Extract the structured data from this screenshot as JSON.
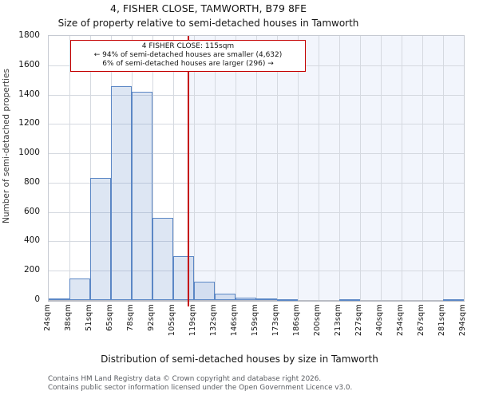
{
  "chart_data": {
    "type": "bar",
    "title": "4, FISHER CLOSE, TAMWORTH, B79 8FE",
    "subtitle": "Size of property relative to semi-detached houses in Tamworth",
    "xlabel": "Distribution of semi-detached houses by size in Tamworth",
    "ylabel": "Number of semi-detached properties",
    "bin_edges_sqm": [
      24,
      38,
      51,
      65,
      78,
      92,
      105,
      119,
      132,
      146,
      159,
      173,
      186,
      200,
      213,
      227,
      240,
      254,
      267,
      281,
      294
    ],
    "xtick_labels": [
      "24sqm",
      "38sqm",
      "51sqm",
      "65sqm",
      "78sqm",
      "92sqm",
      "105sqm",
      "119sqm",
      "132sqm",
      "146sqm",
      "159sqm",
      "173sqm",
      "186sqm",
      "200sqm",
      "213sqm",
      "227sqm",
      "240sqm",
      "254sqm",
      "267sqm",
      "281sqm",
      "294sqm"
    ],
    "values": [
      10,
      145,
      830,
      1455,
      1420,
      560,
      300,
      125,
      45,
      15,
      10,
      5,
      0,
      0,
      8,
      0,
      0,
      0,
      0,
      8
    ],
    "yticks": [
      0,
      200,
      400,
      600,
      800,
      1000,
      1200,
      1400,
      1600,
      1800
    ],
    "ylim": [
      0,
      1800
    ],
    "grid": true,
    "legend": "none",
    "marker": {
      "value_sqm": 115,
      "smaller_pct": 94,
      "smaller_count": "4,632",
      "larger_pct": 6,
      "larger_count": "296"
    },
    "annotation": {
      "line1": "4 FISHER CLOSE: 115sqm",
      "line2": "← 94% of semi-detached houses are smaller (4,632)",
      "line3": "6% of semi-detached houses are larger (296) →"
    },
    "colors": {
      "bar_edge": "#5b87c5",
      "bar_fill": "rgba(99,140,200,0.22)",
      "marker_line": "#c40000",
      "annotation_border": "#c40000",
      "shade_right_of_marker": "#f2f5fc",
      "grid": "#d5d9e0"
    }
  },
  "footer": {
    "line1": "Contains HM Land Registry data © Crown copyright and database right 2026.",
    "line2": "Contains public sector information licensed under the Open Government Licence v3.0."
  }
}
